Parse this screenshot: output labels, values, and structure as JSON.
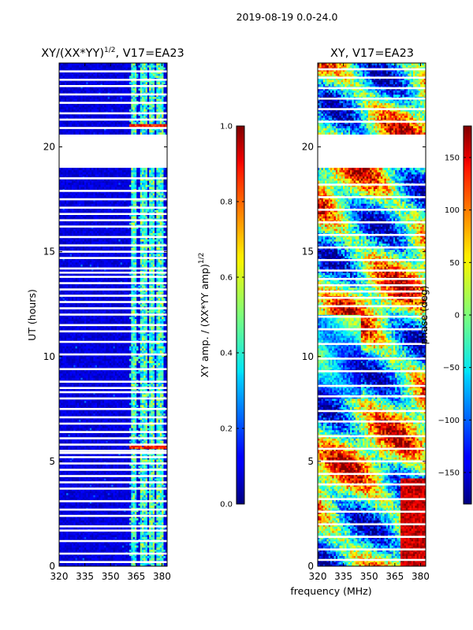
{
  "suptitle": "2019-08-19 0.0-24.0",
  "chart_data": [
    {
      "type": "heatmap",
      "title_main": "XY/(XX*YY)",
      "title_sup": "1/2",
      "title_rest": ", V17=EA23",
      "xlabel": "frequency (MHz)",
      "ylabel": "UT (hours)",
      "xlim": [
        320,
        383
      ],
      "ylim": [
        0,
        24
      ],
      "xticks": [
        320,
        335,
        350,
        365,
        380
      ],
      "yticks": [
        0,
        5,
        10,
        15,
        20
      ],
      "colorbar": {
        "label_main": "XY amp. / (XX*YY amp)",
        "label_sup": "1/2",
        "range": [
          0.0,
          1.0
        ],
        "ticks": [
          "0.0",
          "0.2",
          "0.4",
          "0.6",
          "0.8",
          "1.0"
        ],
        "colormap": "jet"
      },
      "data_gaps_hours": [
        [
          19.0,
          20.6
        ]
      ],
      "flagged_rows_hours": [
        0.2,
        0.6,
        1.2,
        1.7,
        1.9,
        2.4,
        2.7,
        3.1,
        3.7,
        4.0,
        4.3,
        4.6,
        4.9,
        5.2,
        5.4,
        5.5,
        5.8,
        6.1,
        6.4,
        6.8,
        7.1,
        7.5,
        8.0,
        8.3,
        8.5,
        8.8,
        9.4,
        10.1,
        10.7,
        11.2,
        11.5,
        12.0,
        12.3,
        12.6,
        12.9,
        13.2,
        13.5,
        13.8,
        14.0,
        14.2,
        14.7,
        15.0,
        15.3,
        15.7,
        16.2,
        16.5,
        16.8,
        17.1,
        17.5,
        17.9,
        18.5,
        20.9,
        21.3,
        21.6,
        22.1,
        22.5,
        22.9,
        23.2,
        23.6
      ],
      "bright_channels_mhz": [
        [
          362,
          365
        ],
        [
          367,
          371
        ],
        [
          373,
          376
        ],
        [
          377,
          381
        ]
      ],
      "bright_rows_hours": [
        5.7,
        21.0
      ]
    },
    {
      "type": "heatmap",
      "title": "XY, V17=EA23",
      "xlabel": "frequency (MHz)",
      "ylabel": "",
      "xlim": [
        320,
        383
      ],
      "ylim": [
        0,
        24
      ],
      "xticks": [
        320,
        335,
        350,
        365,
        380
      ],
      "yticks": [
        0,
        5,
        10,
        15,
        20
      ],
      "colorbar": {
        "label": "phase (deg)",
        "range": [
          -180,
          180
        ],
        "ticks": [
          "150",
          "100",
          "50",
          "0",
          "−50",
          "−100",
          "−150"
        ],
        "tick_values": [
          150,
          100,
          50,
          0,
          -50,
          -100,
          -150
        ],
        "colormap": "jet"
      },
      "data_gaps_hours": [
        [
          19.0,
          20.6
        ]
      ],
      "flagged_rows_hours": [
        0.3,
        0.8,
        1.4,
        2.0,
        2.6,
        3.2,
        3.9,
        4.4,
        5.0,
        5.6,
        6.2,
        6.9,
        7.4,
        8.1,
        8.6,
        9.3,
        9.9,
        10.6,
        11.3,
        11.9,
        12.4,
        12.8,
        13.1,
        13.4,
        13.7,
        14.1,
        14.6,
        15.2,
        15.8,
        16.4,
        17.0,
        17.6,
        18.2,
        21.2,
        21.8,
        22.3,
        22.8,
        23.3,
        23.7
      ]
    }
  ]
}
